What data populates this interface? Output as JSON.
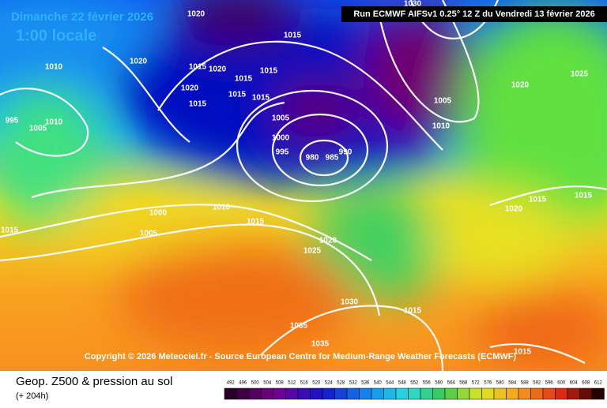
{
  "header": {
    "date": "Dimanche 22 février 2026",
    "time": "1:00 locale",
    "run": "Run ECMWF AIFSv1 0.25° 12 Z du Vendredi 13 février 2026"
  },
  "copyright": "Copyright © 2026 Meteociel.fr - Source European Centre for Medium-Range Weather Forecasts (ECMWF)",
  "footer": {
    "title": "Geop. Z500 & pression au sol",
    "subtitle": "(+ 204h)"
  },
  "legend": {
    "labels": [
      492,
      496,
      500,
      504,
      508,
      512,
      516,
      520,
      524,
      528,
      532,
      536,
      540,
      544,
      548,
      552,
      556,
      560,
      564,
      568,
      572,
      576,
      580,
      584,
      588,
      592,
      596,
      600,
      604,
      608,
      612
    ]
  },
  "isobar_labels": [
    1020,
    1015,
    1020,
    1010,
    1015,
    1020,
    1015,
    1015,
    1020,
    1015,
    1015,
    1015,
    1005,
    1000,
    995,
    980,
    985,
    990,
    995,
    1010,
    1005,
    1030,
    1005,
    1010,
    1020,
    1025,
    1000,
    1010,
    1005,
    1015,
    1015,
    1020,
    1025,
    1020,
    1015,
    1015,
    1030,
    1015,
    1035,
    1035,
    1015
  ]
}
